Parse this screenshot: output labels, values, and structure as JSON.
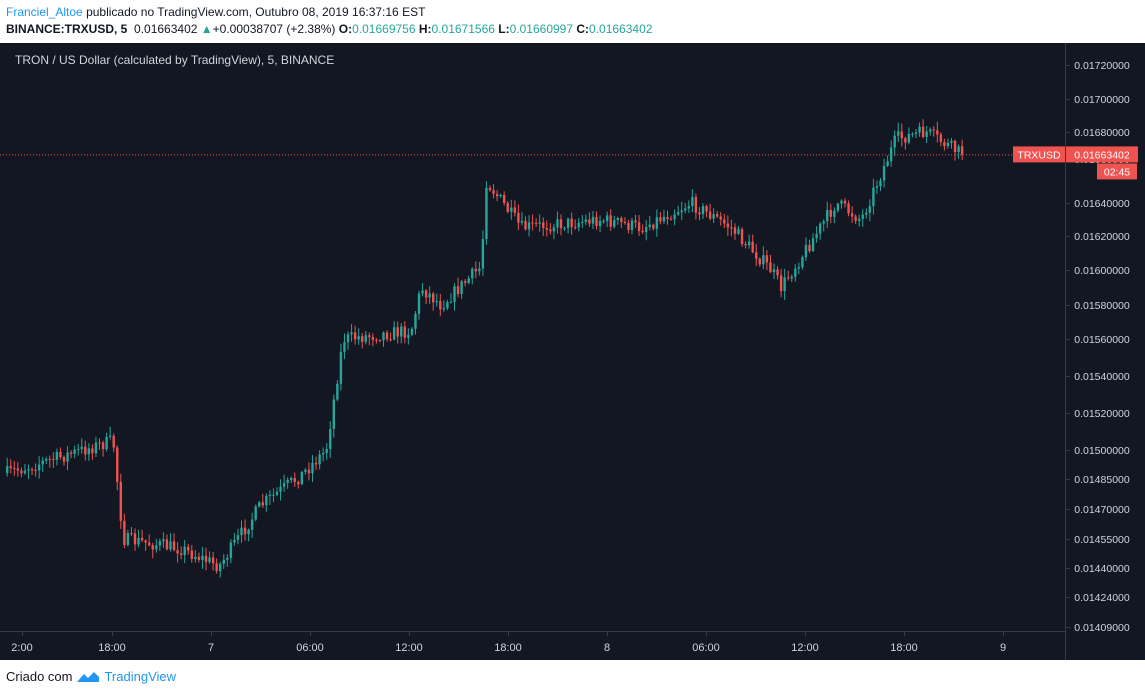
{
  "header": {
    "author": "Franciel_Altoe",
    "published_text": "publicado no TradingView.com, Outubro 08, 2019 16:37:16 EST",
    "symbol": "BINANCE:TRXUSD, 5",
    "last_price": "0.01663402",
    "change": "+0.00038707 (+2.38%)",
    "o_label": "O:",
    "o_value": "0.01669756",
    "h_label": "H:",
    "h_value": "0.01671566",
    "l_label": "L:",
    "l_value": "0.01660997",
    "c_label": "C:",
    "c_value": "0.01663402"
  },
  "footer": {
    "created_with": "Criado com",
    "brand": "TradingView"
  },
  "colors": {
    "background": "#131722",
    "up": "#26a69a",
    "down": "#ef5350",
    "axis_text": "#d1d4dc",
    "price_line": "#ef5350"
  },
  "chart_data": {
    "type": "candlestick",
    "title": "TRON / US Dollar (calculated by TradingView), 5, BINANCE",
    "scale": "log",
    "y_ticks": [
      "0.01720000",
      "0.01700000",
      "0.01680000",
      "0.01660000",
      "0.01640000",
      "0.01620000",
      "0.01600000",
      "0.01580000",
      "0.01560000",
      "0.01540000",
      "0.01520000",
      "0.01500000",
      "0.01485000",
      "0.01470000",
      "0.01455000",
      "0.01440000",
      "0.01424000",
      "0.01409000"
    ],
    "x_ticks": [
      "2:00",
      "18:00",
      "7",
      "06:00",
      "12:00",
      "18:00",
      "8",
      "06:00",
      "12:00",
      "18:00",
      "9"
    ],
    "current_price_label": {
      "symbol": "TRXUSD",
      "value": "0.01663402",
      "countdown": "02:45"
    },
    "price_path": [
      {
        "t": "2:00",
        "y": 0.01488
      },
      {
        "t": "18:00",
        "y": 0.01505
      },
      {
        "t": "",
        "y": 0.01455
      },
      {
        "t": "7",
        "y": 0.0145
      },
      {
        "t": "",
        "y": 0.01441
      },
      {
        "t": "",
        "y": 0.01472
      },
      {
        "t": "06:00",
        "y": 0.01487
      },
      {
        "t": "",
        "y": 0.015
      },
      {
        "t": "",
        "y": 0.0156
      },
      {
        "t": "12:00",
        "y": 0.01565
      },
      {
        "t": "",
        "y": 0.0159
      },
      {
        "t": "",
        "y": 0.0158
      },
      {
        "t": "",
        "y": 0.01602
      },
      {
        "t": "18:00",
        "y": 0.0165
      },
      {
        "t": "",
        "y": 0.01625
      },
      {
        "t": "",
        "y": 0.0163
      },
      {
        "t": "8",
        "y": 0.01625
      },
      {
        "t": "",
        "y": 0.0164
      },
      {
        "t": "06:00",
        "y": 0.01625
      },
      {
        "t": "",
        "y": 0.016
      },
      {
        "t": "",
        "y": 0.0159
      },
      {
        "t": "12:00",
        "y": 0.01615
      },
      {
        "t": "",
        "y": 0.0164
      },
      {
        "t": "",
        "y": 0.0163
      },
      {
        "t": "18:00",
        "y": 0.01675
      },
      {
        "t": "",
        "y": 0.0168
      },
      {
        "t": "",
        "y": 0.01663
      }
    ]
  }
}
